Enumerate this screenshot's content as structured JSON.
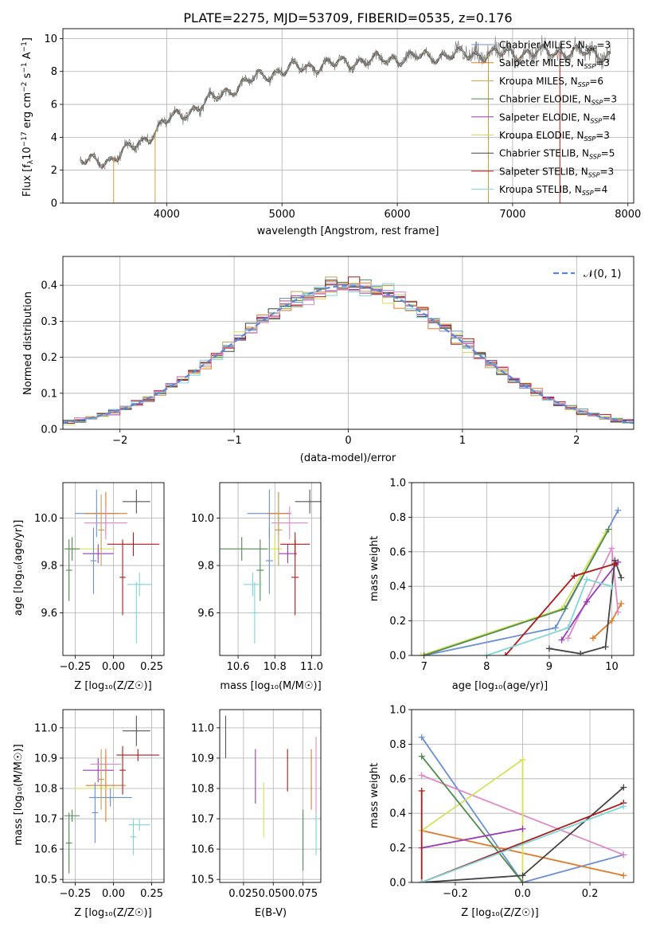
{
  "title": "PLATE=2275, MJD=53709, FIBERID=0535, z=0.176",
  "chart_data": [
    {
      "id": "spectrum",
      "type": "line",
      "xlabel": "wavelength [Angstrom, rest frame]",
      "ylabel": "Flux [f$_\\lambda$10$^{-17}$ erg cm$^{-2}$ s$^{-1}$ A$^{-1}$]",
      "ylabel_main": "Flux [f",
      "ylabel_lambda": "λ",
      "ylabel_mid": "10",
      "ylabel_exp1": "−17",
      "ylabel_unit": " erg cm",
      "ylabel_exp2": "−2",
      "ylabel_s": " s",
      "ylabel_exp3": "−1",
      "ylabel_a": " A",
      "ylabel_exp4": "−1",
      "ylabel_close": "]",
      "xlim": [
        3100,
        8050
      ],
      "ylim": [
        0,
        10.6
      ],
      "xticks": [
        "4000",
        "5000",
        "6000",
        "7000",
        "8000"
      ],
      "yticks": [
        "0",
        "2",
        "4",
        "6",
        "8",
        "10"
      ],
      "xtick_values": [
        4000,
        5000,
        6000,
        7000,
        8000
      ],
      "ytick_values": [
        0,
        2,
        4,
        6,
        8,
        10
      ],
      "series": [
        {
          "name": "Chabrier MILES",
          "nssp": "3",
          "color": "#6a8fd8"
        },
        {
          "name": "Salpeter MILES",
          "nssp": "3",
          "color": "#e07b2b"
        },
        {
          "name": "Kroupa MILES",
          "nssp": "6",
          "color": "#c8a048"
        },
        {
          "name": "Chabrier ELODIE",
          "nssp": "3",
          "color": "#4f8a4f"
        },
        {
          "name": "Salpeter ELODIE",
          "nssp": "4",
          "color": "#9a3ab8"
        },
        {
          "name": "Kroupa ELODIE",
          "nssp": "3",
          "color": "#d6e05a"
        },
        {
          "name": "Chabrier STELIB",
          "nssp": "5",
          "color": "#444444"
        },
        {
          "name": "Salpeter STELIB",
          "nssp": "3",
          "color": "#b01818"
        },
        {
          "name": "Kroupa STELIB",
          "nssp": "4",
          "color": "#7ed6d8"
        }
      ],
      "observed_color": "#777777",
      "continuum": [
        [
          3250,
          2.5
        ],
        [
          3500,
          2.6
        ],
        [
          3800,
          3.8
        ],
        [
          4000,
          5.0
        ],
        [
          4200,
          5.6
        ],
        [
          4500,
          6.7
        ],
        [
          4800,
          7.7
        ],
        [
          5100,
          8.2
        ],
        [
          5500,
          8.5
        ],
        [
          6000,
          8.8
        ],
        [
          6500,
          9.0
        ],
        [
          7000,
          9.1
        ],
        [
          7500,
          9.2
        ],
        [
          7850,
          9.0
        ]
      ]
    },
    {
      "id": "residuals",
      "type": "histogram",
      "xlabel": "(data-model)/error",
      "ylabel": "Normed distribution",
      "xlim": [
        -2.5,
        2.5
      ],
      "ylim": [
        0,
        0.48
      ],
      "xticks": [
        "−2",
        "−1",
        "0",
        "1",
        "2"
      ],
      "xtick_values": [
        -2,
        -1,
        0,
        1,
        2
      ],
      "yticks": [
        "0.0",
        "0.1",
        "0.2",
        "0.3",
        "0.4"
      ],
      "ytick_values": [
        0,
        0.1,
        0.2,
        0.3,
        0.4
      ],
      "gaussian_label": "𝒩(0, 1)",
      "gaussian_color": "#5b87d6",
      "bin_width": 0.1
    },
    {
      "id": "age-vs-z",
      "type": "errorbar",
      "xlabel": "Z [log₁₀(Z/Z☉)]",
      "ylabel": "age  [log₁₀(age/yr)]",
      "xlim": [
        -0.33,
        0.33
      ],
      "ylim": [
        9.42,
        10.15
      ],
      "xticks": [
        "−0.25",
        "0.00",
        "0.25"
      ],
      "xtick_values": [
        -0.25,
        0,
        0.25
      ],
      "yticks": [
        "9.6",
        "9.8",
        "10.0"
      ],
      "ytick_values": [
        9.6,
        9.8,
        10.0
      ],
      "points": [
        {
          "x": -0.11,
          "y": 10.02,
          "xerr": 0.14,
          "yerr": 0.1,
          "color": "#6a8fd8"
        },
        {
          "x": -0.05,
          "y": 10.02,
          "xerr": 0.14,
          "yerr": 0.09,
          "color": "#e07b2b"
        },
        {
          "x": -0.05,
          "y": 9.98,
          "xerr": 0.14,
          "yerr": 0.07,
          "color": "#e089c6"
        },
        {
          "x": -0.13,
          "y": 9.87,
          "xerr": 0.14,
          "yerr": 0.05,
          "color": "#d6e05a"
        },
        {
          "x": -0.27,
          "y": 9.87,
          "xerr": 0.05,
          "yerr": 0.05,
          "color": "#4f8a4f"
        },
        {
          "x": -0.29,
          "y": 9.78,
          "xerr": 0.02,
          "yerr": 0.13,
          "color": "#4f8a4f"
        },
        {
          "x": -0.1,
          "y": 9.85,
          "xerr": 0.1,
          "yerr": 0.04,
          "color": "#9a3ab8"
        },
        {
          "x": -0.13,
          "y": 9.82,
          "xerr": 0.02,
          "yerr": 0.14,
          "color": "#6a8fd8"
        },
        {
          "x": 0.15,
          "y": 10.07,
          "xerr": 0.09,
          "yerr": 0.05,
          "color": "#555555"
        },
        {
          "x": 0.13,
          "y": 9.89,
          "xerr": 0.17,
          "yerr": 0.05,
          "color": "#b01818"
        },
        {
          "x": 0.06,
          "y": 9.75,
          "xerr": 0.02,
          "yerr": 0.16,
          "color": "#b01818"
        },
        {
          "x": 0.17,
          "y": 9.72,
          "xerr": 0.08,
          "yerr": 0.05,
          "color": "#7ed6d8"
        },
        {
          "x": 0.15,
          "y": 9.6,
          "xerr": 0.02,
          "yerr": 0.13,
          "color": "#7ed6d8"
        },
        {
          "x": -0.08,
          "y": 9.95,
          "xerr": 0.02,
          "yerr": 0.15,
          "color": "#c8a048"
        }
      ]
    },
    {
      "id": "age-vs-mass",
      "type": "errorbar",
      "xlabel": "mass [log₁₀(M/M☉)]",
      "ylabel": "",
      "xlim": [
        10.5,
        11.05
      ],
      "ylim": [
        9.42,
        10.15
      ],
      "xticks": [
        "10.6",
        "10.8",
        "11.0"
      ],
      "xtick_values": [
        10.6,
        10.8,
        11.0
      ],
      "yticks": [
        "9.6",
        "9.8",
        "10.0"
      ],
      "ytick_values": [
        9.6,
        9.8,
        10.0
      ],
      "points": [
        {
          "x": 10.77,
          "y": 10.02,
          "xerr": 0.12,
          "yerr": 0.1,
          "color": "#6a8fd8"
        },
        {
          "x": 10.82,
          "y": 10.02,
          "xerr": 0.06,
          "yerr": 0.09,
          "color": "#e07b2b"
        },
        {
          "x": 10.88,
          "y": 9.98,
          "xerr": 0.1,
          "yerr": 0.07,
          "color": "#e089c6"
        },
        {
          "x": 10.8,
          "y": 9.87,
          "xerr": 0.04,
          "yerr": 0.05,
          "color": "#d6e05a"
        },
        {
          "x": 10.62,
          "y": 9.87,
          "xerr": 0.14,
          "yerr": 0.05,
          "color": "#4f8a4f"
        },
        {
          "x": 10.72,
          "y": 9.78,
          "xerr": 0.02,
          "yerr": 0.13,
          "color": "#4f8a4f"
        },
        {
          "x": 10.87,
          "y": 9.85,
          "xerr": 0.05,
          "yerr": 0.04,
          "color": "#9a3ab8"
        },
        {
          "x": 10.77,
          "y": 9.82,
          "xerr": 0.02,
          "yerr": 0.14,
          "color": "#6a8fd8"
        },
        {
          "x": 10.99,
          "y": 10.07,
          "xerr": 0.08,
          "yerr": 0.05,
          "color": "#555555"
        },
        {
          "x": 10.91,
          "y": 9.89,
          "xerr": 0.08,
          "yerr": 0.05,
          "color": "#b01818"
        },
        {
          "x": 10.91,
          "y": 9.75,
          "xerr": 0.02,
          "yerr": 0.16,
          "color": "#b01818"
        },
        {
          "x": 10.68,
          "y": 9.72,
          "xerr": 0.05,
          "yerr": 0.05,
          "color": "#7ed6d8"
        },
        {
          "x": 10.69,
          "y": 9.6,
          "xerr": 0.02,
          "yerr": 0.13,
          "color": "#7ed6d8"
        },
        {
          "x": 10.82,
          "y": 9.95,
          "xerr": 0.02,
          "yerr": 0.15,
          "color": "#c8a048"
        }
      ]
    },
    {
      "id": "mass-weight-vs-age",
      "type": "line",
      "xlabel": "age  [log₁₀(age/yr)]",
      "ylabel": "mass weight",
      "xlim": [
        6.8,
        10.35
      ],
      "ylim": [
        0,
        1.0
      ],
      "xticks": [
        "7",
        "8",
        "9",
        "10"
      ],
      "xtick_values": [
        7,
        8,
        9,
        10
      ],
      "yticks": [
        "0.0",
        "0.2",
        "0.4",
        "0.6",
        "0.8",
        "1.0"
      ],
      "ytick_values": [
        0,
        0.2,
        0.4,
        0.6,
        0.8,
        1.0
      ],
      "series": [
        {
          "color": "#6a8fd8",
          "points": [
            [
              7.0,
              0.0
            ],
            [
              9.1,
              0.16
            ],
            [
              10.1,
              0.84
            ]
          ]
        },
        {
          "color": "#e07b2b",
          "points": [
            [
              9.7,
              0.1
            ],
            [
              10.0,
              0.2
            ],
            [
              10.15,
              0.3
            ]
          ]
        },
        {
          "color": "#e089c6",
          "points": [
            [
              9.3,
              0.1
            ],
            [
              10.0,
              0.62
            ],
            [
              10.1,
              0.25
            ]
          ]
        },
        {
          "color": "#d6e05a",
          "points": [
            [
              6.95,
              0.0
            ],
            [
              9.2,
              0.27
            ],
            [
              9.9,
              0.71
            ]
          ]
        },
        {
          "color": "#4f8a4f",
          "points": [
            [
              7.0,
              0.0
            ],
            [
              9.25,
              0.27
            ],
            [
              9.95,
              0.73
            ]
          ]
        },
        {
          "color": "#9a3ab8",
          "points": [
            [
              9.2,
              0.09
            ],
            [
              9.6,
              0.31
            ],
            [
              10.1,
              0.54
            ]
          ]
        },
        {
          "color": "#444444",
          "points": [
            [
              9.0,
              0.04
            ],
            [
              9.5,
              0.01
            ],
            [
              9.9,
              0.05
            ],
            [
              10.05,
              0.55
            ],
            [
              10.15,
              0.45
            ]
          ]
        },
        {
          "color": "#b01818",
          "points": [
            [
              8.3,
              0.0
            ],
            [
              9.4,
              0.46
            ],
            [
              10.05,
              0.53
            ]
          ]
        },
        {
          "color": "#7ed6d8",
          "points": [
            [
              8.0,
              0.0
            ],
            [
              9.3,
              0.16
            ],
            [
              9.6,
              0.44
            ],
            [
              10.0,
              0.4
            ]
          ]
        }
      ]
    },
    {
      "id": "mass-vs-z",
      "type": "errorbar",
      "xlabel": "Z [log₁₀(Z/Z☉)]",
      "ylabel": "mass [log₁₀(M/M☉)]",
      "xlim": [
        -0.33,
        0.33
      ],
      "ylim": [
        10.49,
        11.06
      ],
      "xticks": [
        "−0.25",
        "0.00",
        "0.25"
      ],
      "xtick_values": [
        -0.25,
        0,
        0.25
      ],
      "yticks": [
        "10.5",
        "10.6",
        "10.7",
        "10.8",
        "10.9",
        "11.0"
      ],
      "ytick_values": [
        10.5,
        10.6,
        10.7,
        10.8,
        10.9,
        11.0
      ],
      "points": [
        {
          "x": -0.1,
          "y": 10.86,
          "xerr": 0.1,
          "yerr": 0.04,
          "color": "#9a3ab8"
        },
        {
          "x": -0.05,
          "y": 10.88,
          "xerr": 0.1,
          "yerr": 0.03,
          "color": "#e089c6"
        },
        {
          "x": -0.05,
          "y": 10.81,
          "xerr": 0.13,
          "yerr": 0.12,
          "color": "#e07b2b"
        },
        {
          "x": -0.12,
          "y": 10.8,
          "xerr": 0.14,
          "yerr": 0.02,
          "color": "#d6e05a"
        },
        {
          "x": -0.02,
          "y": 10.77,
          "xerr": 0.14,
          "yerr": 0.03,
          "color": "#6a8fd8"
        },
        {
          "x": -0.12,
          "y": 10.72,
          "xerr": 0.02,
          "yerr": 0.1,
          "color": "#6a8fd8"
        },
        {
          "x": -0.27,
          "y": 10.71,
          "xerr": 0.05,
          "yerr": 0.02,
          "color": "#4f8a4f"
        },
        {
          "x": -0.29,
          "y": 10.62,
          "xerr": 0.02,
          "yerr": 0.1,
          "color": "#4f8a4f"
        },
        {
          "x": 0.15,
          "y": 10.99,
          "xerr": 0.09,
          "yerr": 0.05,
          "color": "#555555"
        },
        {
          "x": 0.16,
          "y": 10.91,
          "xerr": 0.14,
          "yerr": 0.02,
          "color": "#b01818"
        },
        {
          "x": 0.06,
          "y": 10.86,
          "xerr": 0.02,
          "yerr": 0.08,
          "color": "#b01818"
        },
        {
          "x": 0.17,
          "y": 10.68,
          "xerr": 0.07,
          "yerr": 0.02,
          "color": "#7ed6d8"
        },
        {
          "x": 0.13,
          "y": 10.64,
          "xerr": 0.02,
          "yerr": 0.06,
          "color": "#7ed6d8"
        },
        {
          "x": -0.08,
          "y": 10.83,
          "xerr": 0.02,
          "yerr": 0.1,
          "color": "#c8a048"
        }
      ]
    },
    {
      "id": "mass-vs-ebv",
      "type": "errorbar",
      "xlabel": "E(B-V)",
      "ylabel": "",
      "xlim": [
        0.005,
        0.09
      ],
      "ylim": [
        10.49,
        11.06
      ],
      "xticks": [
        "0.025",
        "0.050",
        "0.075"
      ],
      "xtick_values": [
        0.025,
        0.05,
        0.075
      ],
      "yticks": [
        "10.5",
        "10.6",
        "10.7",
        "10.8",
        "10.9",
        "11.0"
      ],
      "ytick_values": [
        10.5,
        10.6,
        10.7,
        10.8,
        10.9,
        11.0
      ],
      "points": [
        {
          "x": 0.01,
          "y": 10.97,
          "xerr": 0,
          "yerr": 0.07,
          "color": "#555555"
        },
        {
          "x": 0.035,
          "y": 10.84,
          "xerr": 0,
          "yerr": 0.09,
          "color": "#9a3ab8"
        },
        {
          "x": 0.042,
          "y": 10.73,
          "xerr": 0,
          "yerr": 0.09,
          "color": "#d6e05a"
        },
        {
          "x": 0.062,
          "y": 10.86,
          "xerr": 0,
          "yerr": 0.07,
          "color": "#b01818"
        },
        {
          "x": 0.075,
          "y": 10.63,
          "xerr": 0,
          "yerr": 0.1,
          "color": "#4f8a4f"
        },
        {
          "x": 0.082,
          "y": 10.83,
          "xerr": 0,
          "yerr": 0.1,
          "color": "#e07b2b"
        },
        {
          "x": 0.086,
          "y": 10.8,
          "xerr": 0,
          "yerr": 0.17,
          "color": "#e089c6"
        },
        {
          "x": 0.086,
          "y": 10.65,
          "xerr": 0,
          "yerr": 0.07,
          "color": "#7ed6d8"
        }
      ]
    },
    {
      "id": "mass-weight-vs-z",
      "type": "line",
      "xlabel": "Z [log₁₀(Z/Z☉)]",
      "ylabel": "mass weight",
      "xlim": [
        -0.33,
        0.33
      ],
      "ylim": [
        0,
        1.0
      ],
      "xticks": [
        "−0.2",
        "0.0",
        "0.2"
      ],
      "xtick_values": [
        -0.2,
        0,
        0.2
      ],
      "yticks": [
        "0.0",
        "0.2",
        "0.4",
        "0.6",
        "0.8",
        "1.0"
      ],
      "ytick_values": [
        0,
        0.2,
        0.4,
        0.6,
        0.8,
        1.0
      ],
      "series": [
        {
          "color": "#6a8fd8",
          "points": [
            [
              -0.3,
              0.84
            ],
            [
              0.0,
              0.0
            ],
            [
              0.3,
              0.16
            ]
          ]
        },
        {
          "color": "#e07b2b",
          "points": [
            [
              -0.3,
              0.3
            ],
            [
              0.3,
              0.04
            ]
          ]
        },
        {
          "color": "#e089c6",
          "points": [
            [
              -0.3,
              0.62
            ],
            [
              0.3,
              0.16
            ]
          ]
        },
        {
          "color": "#d6e05a",
          "points": [
            [
              -0.3,
              0.3
            ],
            [
              0.0,
              0.71
            ],
            [
              0.0,
              0.0
            ]
          ]
        },
        {
          "color": "#4f8a4f",
          "points": [
            [
              -0.3,
              0.73
            ],
            [
              0.0,
              0.0
            ]
          ]
        },
        {
          "color": "#9a3ab8",
          "points": [
            [
              -0.3,
              0.2
            ],
            [
              0.0,
              0.31
            ]
          ]
        },
        {
          "color": "#444444",
          "points": [
            [
              -0.3,
              0.0
            ],
            [
              0.0,
              0.04
            ],
            [
              0.3,
              0.55
            ]
          ]
        },
        {
          "color": "#b01818",
          "points": [
            [
              -0.3,
              0.53
            ],
            [
              -0.3,
              0.0
            ],
            [
              0.3,
              0.46
            ]
          ]
        },
        {
          "color": "#7ed6d8",
          "points": [
            [
              -0.3,
              0.0
            ],
            [
              0.3,
              0.44
            ]
          ]
        }
      ]
    }
  ]
}
